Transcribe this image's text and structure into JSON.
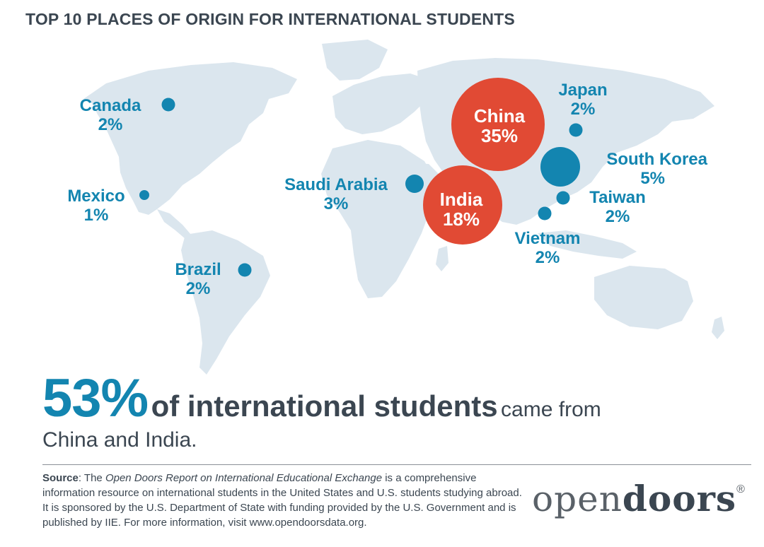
{
  "title": "TOP 10 PLACES OF ORIGIN FOR INTERNATIONAL STUDENTS",
  "colors": {
    "land": "#dbe6ee",
    "marker_small": "#1385b0",
    "marker_large": "#e14a34",
    "text_dark": "#3b4651"
  },
  "countries": [
    {
      "name": "Canada",
      "pct": "2%",
      "value": 2
    },
    {
      "name": "Mexico",
      "pct": "1%",
      "value": 1
    },
    {
      "name": "Brazil",
      "pct": "2%",
      "value": 2
    },
    {
      "name": "Saudi Arabia",
      "pct": "3%",
      "value": 3
    },
    {
      "name": "India",
      "pct": "18%",
      "value": 18
    },
    {
      "name": "China",
      "pct": "35%",
      "value": 35
    },
    {
      "name": "Japan",
      "pct": "2%",
      "value": 2
    },
    {
      "name": "South Korea",
      "pct": "5%",
      "value": 5
    },
    {
      "name": "Taiwan",
      "pct": "2%",
      "value": 2
    },
    {
      "name": "Vietnam",
      "pct": "2%",
      "value": 2
    }
  ],
  "headline": {
    "pct": "53%",
    "bold": "of international students",
    "rest": "came from",
    "line2": "China and India."
  },
  "source": {
    "label": "Source",
    "prefix": ": The ",
    "report": "Open Doors Report on International Educational Exchange",
    "text": " is a comprehensive information resource on international students in the United States and U.S. students studying abroad. It is sponsored by the U.S. Department of State with funding provided by the U.S. Government and is published by IIE. For more information, visit www.opendoorsdata.org."
  },
  "logo": {
    "part1": "open",
    "part2": "doors",
    "mark": "®"
  }
}
